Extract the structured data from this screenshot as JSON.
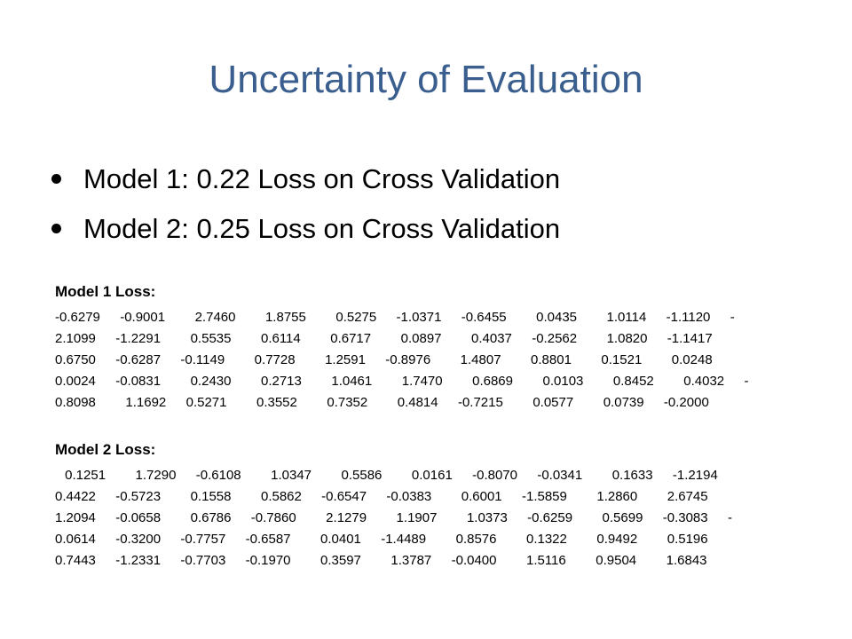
{
  "slide": {
    "title": "Uncertainty of Evaluation",
    "bullets": [
      "Model 1: 0.22 Loss on Cross Validation",
      "Model 2: 0.25 Loss on Cross Validation"
    ]
  },
  "model1": {
    "heading": "Model 1 Loss:",
    "lines": [
      "-0.6279  -0.9001   2.7460   1.8755   0.5275  -1.0371  -0.6455   0.0435   1.0114  -1.1120  -",
      "2.1099  -1.2291   0.5535   0.6114   0.6717   0.0897   0.4037  -0.2562   1.0820  -1.1417",
      "0.6750  -0.6287  -0.1149   0.7728   1.2591  -0.8976   1.4807   0.8801   0.1521   0.0248",
      "0.0024  -0.0831   0.2430   0.2713   1.0461   1.7470   0.6869   0.0103   0.8452   0.4032  -",
      "0.8098   1.1692  0.5271   0.3552   0.7352   0.4814  -0.7215   0.0577   0.0739  -0.2000"
    ]
  },
  "model2": {
    "heading": "Model 2 Loss:",
    "lines": [
      " 0.1251   1.7290  -0.6108   1.0347   0.5586   0.0161  -0.8070  -0.0341   0.1633  -1.2194",
      "0.4422  -0.5723   0.1558   0.5862  -0.6547  -0.0383   0.6001  -1.5859   1.2860   2.6745",
      "1.2094  -0.0658   0.6786  -0.7860   2.1279   1.1907   1.0373  -0.6259   0.5699  -0.3083  -",
      "0.0614  -0.3200  -0.7757  -0.6587   0.0401  -1.4489   0.8576   0.1322   0.9492   0.5196",
      "0.7443  -1.2331  -0.7703  -0.1970   0.3597   1.3787  -0.0400   1.5116   0.9504   1.6843"
    ]
  }
}
